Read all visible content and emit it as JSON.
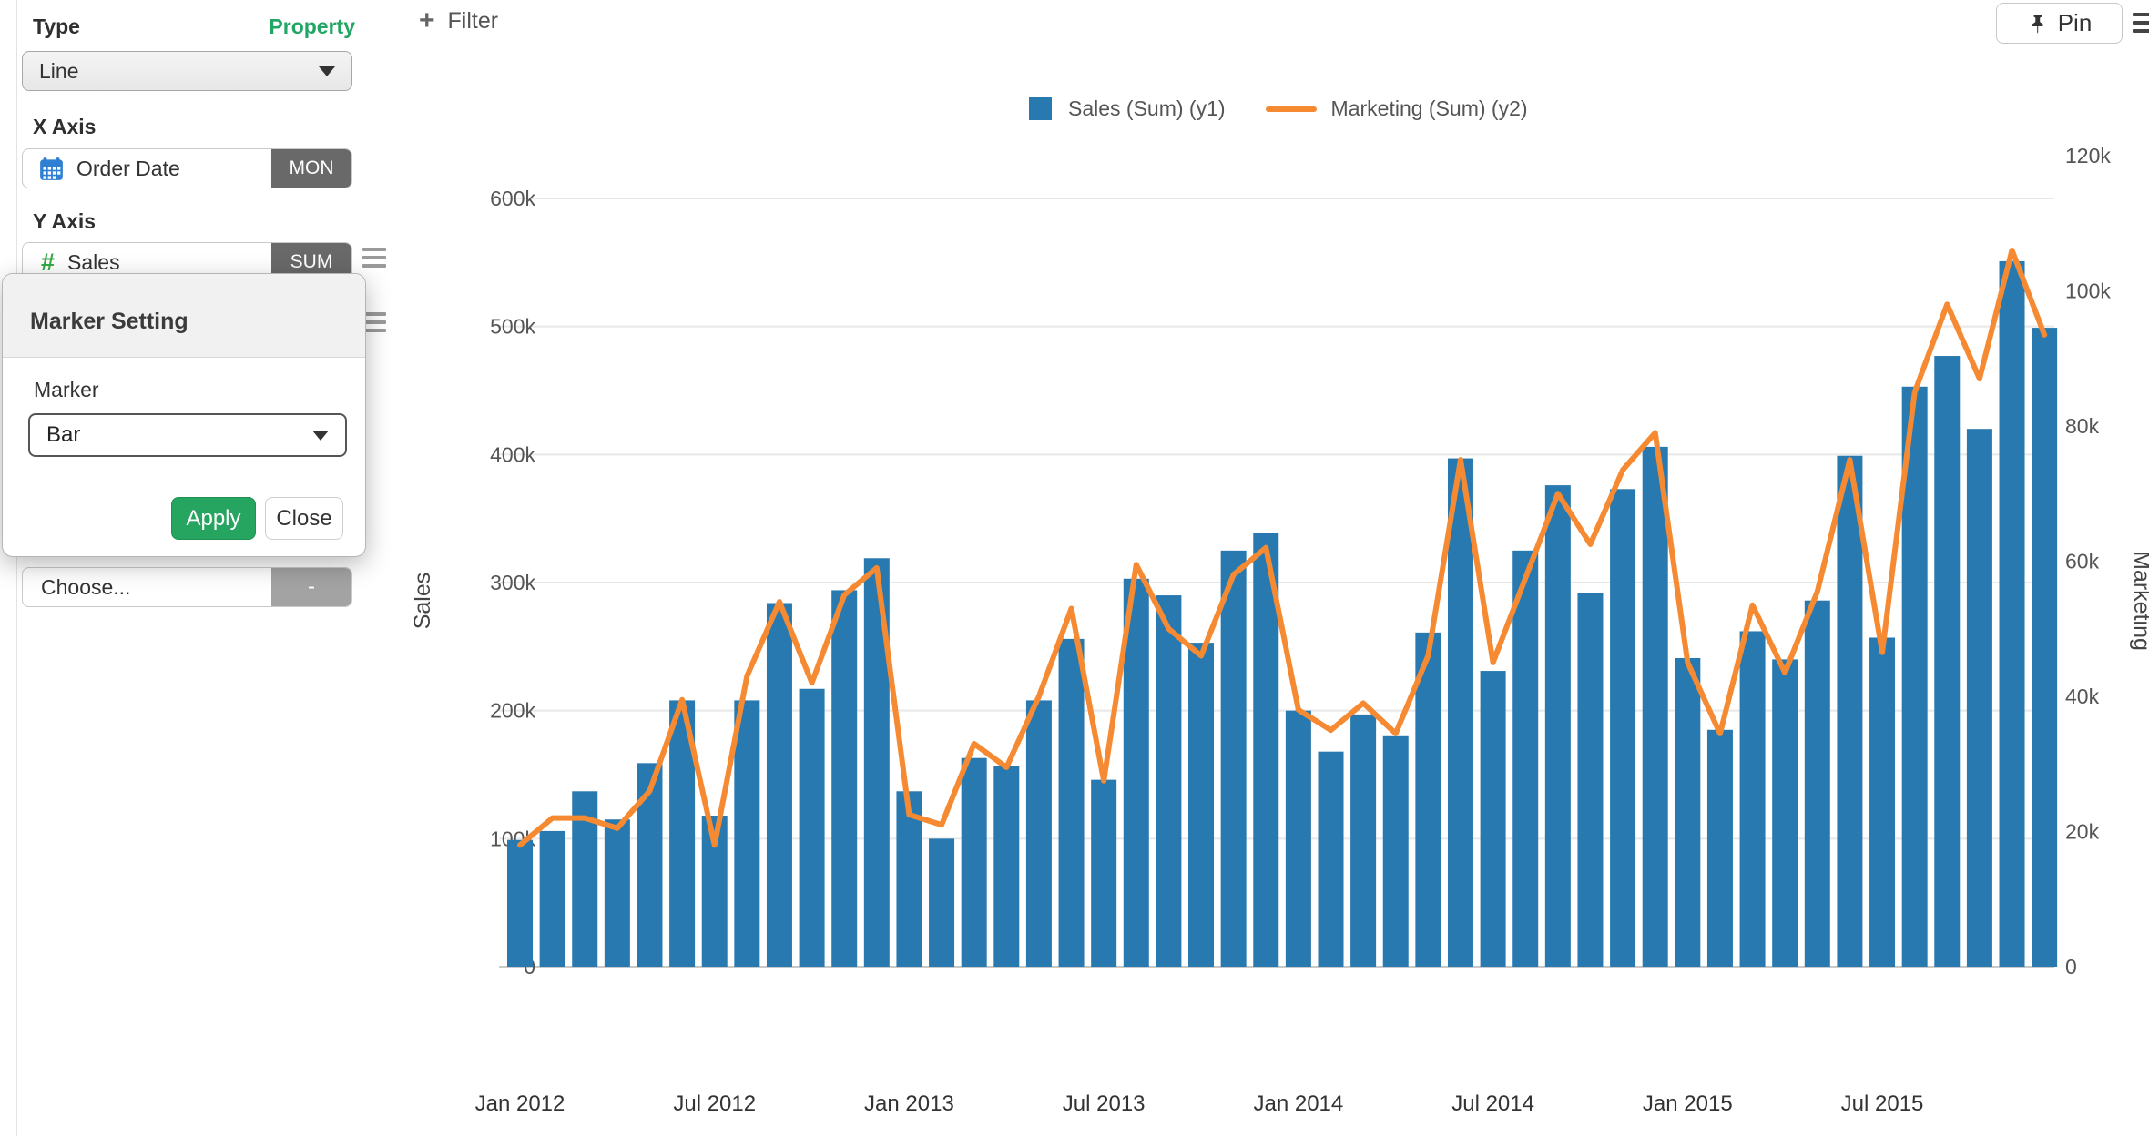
{
  "sidebar": {
    "type_label": "Type",
    "property_link": "Property",
    "type_value": "Line",
    "x_axis_label": "X Axis",
    "x_field": {
      "name": "Order Date",
      "badge": "MON",
      "icon": "calendar-icon"
    },
    "y_axis_label": "Y Axis",
    "y_field": {
      "name": "Sales",
      "badge": "SUM",
      "icon": "number-icon"
    },
    "extra_field": {
      "name": "Choose...",
      "badge": "-"
    }
  },
  "popup": {
    "title": "Marker Setting",
    "marker_label": "Marker",
    "marker_value": "Bar",
    "apply_label": "Apply",
    "close_label": "Close"
  },
  "topbar": {
    "filter_label": "Filter",
    "pin_label": "Pin"
  },
  "chart_data": {
    "type": "combo",
    "categories": [
      "Jan 2012",
      "Feb 2012",
      "Mar 2012",
      "Apr 2012",
      "May 2012",
      "Jun 2012",
      "Jul 2012",
      "Aug 2012",
      "Sep 2012",
      "Oct 2012",
      "Nov 2012",
      "Dec 2012",
      "Jan 2013",
      "Feb 2013",
      "Mar 2013",
      "Apr 2013",
      "May 2013",
      "Jun 2013",
      "Jul 2013",
      "Aug 2013",
      "Sep 2013",
      "Oct 2013",
      "Nov 2013",
      "Dec 2013",
      "Jan 2014",
      "Feb 2014",
      "Mar 2014",
      "Apr 2014",
      "May 2014",
      "Jun 2014",
      "Jul 2014",
      "Aug 2014",
      "Sep 2014",
      "Oct 2014",
      "Nov 2014",
      "Dec 2014",
      "Jan 2015",
      "Feb 2015",
      "Mar 2015",
      "Apr 2015",
      "May 2015",
      "Jun 2015",
      "Jul 2015",
      "Aug 2015",
      "Sep 2015",
      "Oct 2015",
      "Nov 2015",
      "Dec 2015"
    ],
    "series": [
      {
        "name": "Sales (Sum) (y1)",
        "type": "bar",
        "axis": "y1",
        "color": "#2879b0",
        "values": [
          99000,
          106000,
          137000,
          115000,
          159000,
          208000,
          118000,
          208000,
          284000,
          217000,
          294000,
          319000,
          137000,
          100000,
          163000,
          157000,
          208000,
          256000,
          146000,
          303000,
          290000,
          253000,
          325000,
          339000,
          200000,
          168000,
          197000,
          180000,
          261000,
          397000,
          231000,
          325000,
          376000,
          292000,
          373000,
          406000,
          241000,
          185000,
          262000,
          240000,
          286000,
          399000,
          257000,
          453000,
          477000,
          420000,
          551000,
          499000
        ]
      },
      {
        "name": "Marketing (Sum) (y2)",
        "type": "line",
        "axis": "y2",
        "color": "#f68a32",
        "values": [
          18000,
          22000,
          22000,
          20500,
          26000,
          39500,
          18000,
          43000,
          54000,
          42000,
          55000,
          59000,
          22500,
          21000,
          33000,
          29500,
          40000,
          53000,
          27500,
          59500,
          50000,
          46000,
          58000,
          62000,
          38000,
          35000,
          39000,
          34500,
          46000,
          75000,
          45000,
          57500,
          70000,
          62500,
          73500,
          79000,
          45000,
          34500,
          53500,
          43500,
          55500,
          75000,
          46500,
          85000,
          98000,
          87000,
          106000,
          93500
        ]
      }
    ],
    "y1": {
      "label": "Sales",
      "max": 600000,
      "tick_values": [
        0,
        100000,
        200000,
        300000,
        400000,
        500000,
        600000
      ],
      "tick_labels": [
        "0",
        "100k",
        "200k",
        "300k",
        "400k",
        "500k",
        "600k"
      ]
    },
    "y2": {
      "label": "Marketing",
      "max": 120000,
      "tick_values": [
        0,
        20000,
        40000,
        60000,
        80000,
        100000,
        120000
      ],
      "tick_labels": [
        "0",
        "20k",
        "40k",
        "60k",
        "80k",
        "100k",
        "120k"
      ]
    },
    "x_ticks": [
      {
        "index": 0,
        "label": "Jan 2012"
      },
      {
        "index": 6,
        "label": "Jul 2012"
      },
      {
        "index": 12,
        "label": "Jan 2013"
      },
      {
        "index": 18,
        "label": "Jul 2013"
      },
      {
        "index": 24,
        "label": "Jan 2014"
      },
      {
        "index": 30,
        "label": "Jul 2014"
      },
      {
        "index": 36,
        "label": "Jan 2015"
      },
      {
        "index": 42,
        "label": "Jul 2015"
      }
    ],
    "grid": true,
    "legend_position": "top"
  }
}
